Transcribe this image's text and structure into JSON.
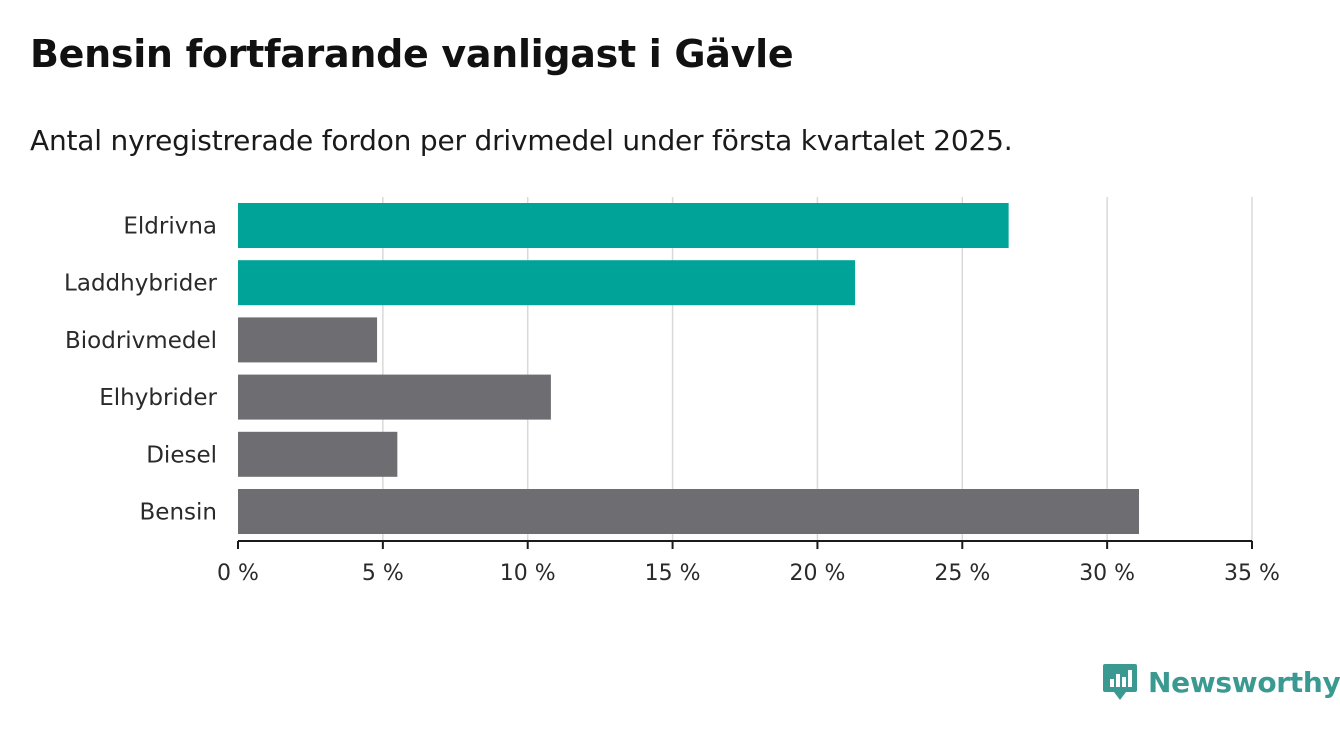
{
  "header": {
    "title": "Bensin fortfarande vanligast i Gävle",
    "subtitle": "Antal nyregistrerade fordon per drivmedel under första kvartalet 2025."
  },
  "brand": {
    "name": "Newsworthy",
    "icon": "newsworthy-logo-icon",
    "color": "#3a9a92"
  },
  "chart_data": {
    "type": "bar",
    "orientation": "horizontal",
    "title": "Bensin fortfarande vanligast i Gävle",
    "subtitle": "Antal nyregistrerade fordon per drivmedel under första kvartalet 2025.",
    "categories": [
      "Eldrivna",
      "Laddhybrider",
      "Biodrivmedel",
      "Elhybrider",
      "Diesel",
      "Bensin"
    ],
    "values": [
      26.6,
      21.3,
      4.8,
      10.8,
      5.5,
      31.1
    ],
    "bar_colors": [
      "#00a398",
      "#00a398",
      "#6e6d72",
      "#6e6d72",
      "#6e6d72",
      "#6e6d72"
    ],
    "xlim": [
      0,
      35
    ],
    "x_ticks": [
      0,
      5,
      10,
      15,
      20,
      25,
      30,
      35
    ],
    "x_tick_labels": [
      "0 %",
      "5 %",
      "10 %",
      "15 %",
      "20 %",
      "25 %",
      "30 %",
      "35 %"
    ],
    "xlabel": "",
    "ylabel": "",
    "grid": true
  }
}
